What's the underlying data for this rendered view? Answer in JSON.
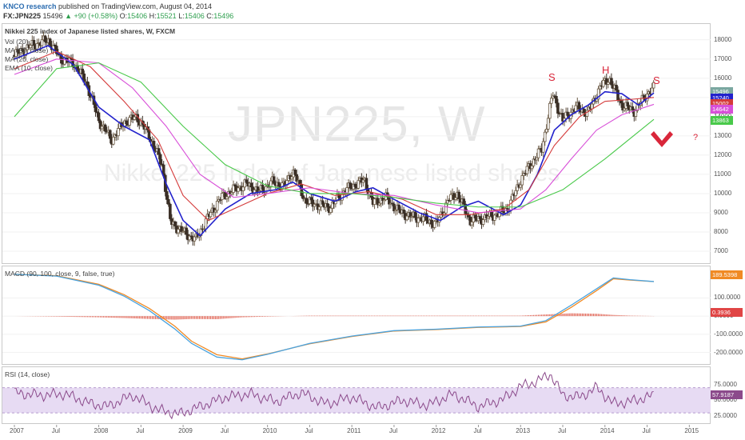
{
  "header": {
    "author": "KNCO research",
    "published": "published on TradingView.com, August 04, 2014",
    "symbol": "FX:JPN225",
    "last": "15496",
    "change": "+90 (+0.58%)",
    "open_label": "O:",
    "open": "15406",
    "high_label": "H:",
    "high": "15521",
    "low_label": "L:",
    "low": "15406",
    "close_label": "C:",
    "close": "15496"
  },
  "main_pane": {
    "legend_title": "Nikkei 225 index of Japanese listed shares, W, FXCM",
    "legend_lines": [
      "Vol (20)",
      "MA (50, close)",
      "MA (20, close)",
      "EMA (10, close)"
    ],
    "watermark_symbol": "JPN225, W",
    "watermark_name": "Nikkei 225 Index of Japanese listed shares",
    "annotations": {
      "left_shoulder": "S",
      "head": "H",
      "right_shoulder": "S",
      "question": "?"
    },
    "badges": [
      "15496",
      "15240",
      "15002",
      "14642",
      "13863"
    ]
  },
  "macd_pane": {
    "legend": "MACD (90, 100, close, 9, false, true)",
    "badges": [
      "189.5398",
      "0.3936"
    ]
  },
  "rsi_pane": {
    "legend": "RSI (14, close)",
    "badges": [
      "57.9187"
    ]
  },
  "colors": {
    "candle_up": "#6b5a45",
    "candle_down": "#3a2f26",
    "ema10": "#2222cc",
    "ma20": "#d43a3a",
    "ma50": "#d84fd8",
    "ma_long": "#49c94a",
    "macd": "#4aa3df",
    "signal": "#f08a24",
    "hist": "#e06050",
    "rsi": "#8b4a8b",
    "rsi_band": "#e7dbf3",
    "annotation": "#d9263a"
  },
  "chart_data": [
    {
      "type": "candlestick",
      "title": "Nikkei 225 index of Japanese listed shares, W, FXCM",
      "ylim": [
        6500,
        18700
      ],
      "y_ticks": [
        7000,
        8000,
        9000,
        10000,
        11000,
        12000,
        13000,
        14000,
        15000,
        16000,
        17000,
        18000
      ],
      "x_ticks": [
        "2007",
        "Jul",
        "2008",
        "Jul",
        "2009",
        "Jul",
        "2010",
        "Jul",
        "2011",
        "Jul",
        "2012",
        "Jul",
        "2013",
        "Jul",
        "2014",
        "Jul",
        "2015"
      ],
      "series": [
        {
          "name": "Price (weekly close)",
          "x": [
            2007.0,
            2007.2,
            2007.4,
            2007.55,
            2007.7,
            2007.85,
            2008.0,
            2008.15,
            2008.3,
            2008.45,
            2008.6,
            2008.75,
            2008.85,
            2009.0,
            2009.15,
            2009.3,
            2009.45,
            2009.6,
            2009.75,
            2009.9,
            2010.05,
            2010.2,
            2010.3,
            2010.45,
            2010.6,
            2010.75,
            2010.9,
            2011.05,
            2011.15,
            2011.25,
            2011.4,
            2011.55,
            2011.7,
            2011.85,
            2012.0,
            2012.15,
            2012.25,
            2012.4,
            2012.55,
            2012.7,
            2012.85,
            2013.0,
            2013.1,
            2013.25,
            2013.38,
            2013.5,
            2013.65,
            2013.8,
            2013.95,
            2014.05,
            2014.2,
            2014.35,
            2014.5,
            2014.58
          ],
          "y": [
            17200,
            17700,
            18000,
            17000,
            16800,
            15800,
            13800,
            12800,
            13700,
            14000,
            13000,
            11500,
            8500,
            8000,
            7600,
            8800,
            9800,
            10200,
            10500,
            10100,
            10600,
            10400,
            11200,
            9600,
            9400,
            9300,
            10100,
            10500,
            10700,
            9500,
            9800,
            9100,
            8800,
            8700,
            8400,
            9700,
            10000,
            8600,
            8700,
            8900,
            9200,
            10700,
            11400,
            12300,
            15200,
            13800,
            14500,
            14200,
            15600,
            16000,
            14600,
            14300,
            15200,
            15496
          ]
        },
        {
          "name": "EMA (10, close)",
          "x": [
            2007.0,
            2007.4,
            2007.7,
            2008.0,
            2008.3,
            2008.6,
            2008.8,
            2009.0,
            2009.2,
            2009.5,
            2009.8,
            2010.1,
            2010.3,
            2010.5,
            2010.8,
            2011.05,
            2011.25,
            2011.5,
            2011.8,
            2012.05,
            2012.3,
            2012.5,
            2012.8,
            2013.0,
            2013.2,
            2013.4,
            2013.6,
            2013.8,
            2014.0,
            2014.2,
            2014.4,
            2014.58
          ],
          "y": [
            17000,
            17700,
            16700,
            14500,
            13500,
            12800,
            10500,
            8600,
            7800,
            9200,
            10000,
            10200,
            10600,
            10000,
            9600,
            10100,
            10300,
            9700,
            9000,
            8600,
            9300,
            9600,
            8900,
            9400,
            11000,
            13300,
            14100,
            14600,
            15300,
            15200,
            14600,
            15240
          ]
        },
        {
          "name": "MA (20, close)",
          "x": [
            2007.0,
            2007.5,
            2007.9,
            2008.3,
            2008.7,
            2009.0,
            2009.3,
            2009.6,
            2010.0,
            2010.4,
            2010.8,
            2011.2,
            2011.6,
            2012.0,
            2012.4,
            2012.8,
            2013.1,
            2013.4,
            2013.7,
            2014.0,
            2014.3,
            2014.58
          ],
          "y": [
            16500,
            17400,
            16600,
            14800,
            12800,
            9900,
            8600,
            9200,
            10000,
            10500,
            9900,
            10100,
            9700,
            8900,
            8900,
            9200,
            10200,
            12500,
            14000,
            14800,
            14900,
            15002
          ]
        },
        {
          "name": "MA (50, close)",
          "x": [
            2007.0,
            2007.5,
            2008.0,
            2008.4,
            2008.8,
            2009.2,
            2009.6,
            2010.0,
            2010.5,
            2011.0,
            2011.5,
            2012.0,
            2012.5,
            2013.0,
            2013.3,
            2013.6,
            2013.9,
            2014.2,
            2014.58
          ],
          "y": [
            16200,
            17000,
            16800,
            15500,
            13500,
            11000,
            9800,
            10000,
            10300,
            10000,
            9900,
            9400,
            9000,
            9200,
            10200,
            11800,
            13300,
            14100,
            14642
          ]
        },
        {
          "name": "MA (long)",
          "x": [
            2007.0,
            2007.5,
            2008.0,
            2008.5,
            2009.0,
            2009.5,
            2010.0,
            2010.5,
            2011.0,
            2011.5,
            2012.0,
            2012.5,
            2013.0,
            2013.5,
            2014.0,
            2014.58
          ],
          "y": [
            14000,
            16500,
            16800,
            15800,
            13500,
            11500,
            10400,
            10000,
            10000,
            9800,
            9500,
            9300,
            9300,
            10200,
            11800,
            13863
          ]
        }
      ]
    },
    {
      "type": "line",
      "title": "MACD (90, 100, close, 9, false, true)",
      "ylim": [
        -250,
        260
      ],
      "y_ticks": [
        -200,
        -100,
        0,
        100
      ],
      "series": [
        {
          "name": "MACD",
          "x": [
            2007.0,
            2007.5,
            2008.0,
            2008.3,
            2008.6,
            2008.9,
            2009.1,
            2009.4,
            2009.7,
            2010.0,
            2010.5,
            2011.0,
            2011.5,
            2012.0,
            2012.5,
            2013.0,
            2013.3,
            2013.6,
            2013.9,
            2014.1,
            2014.3,
            2014.58
          ],
          "y": [
            230,
            220,
            170,
            110,
            30,
            -70,
            -150,
            -225,
            -240,
            -210,
            -150,
            -110,
            -80,
            -72,
            -60,
            -55,
            -25,
            60,
            150,
            210,
            200,
            190
          ]
        },
        {
          "name": "Signal",
          "x": [
            2007.0,
            2007.5,
            2008.0,
            2008.3,
            2008.6,
            2008.9,
            2009.1,
            2009.4,
            2009.7,
            2010.0,
            2010.5,
            2011.0,
            2011.5,
            2012.0,
            2012.5,
            2013.0,
            2013.3,
            2013.6,
            2013.9,
            2014.1,
            2014.3,
            2014.58
          ],
          "y": [
            230,
            222,
            175,
            118,
            42,
            -55,
            -138,
            -212,
            -235,
            -208,
            -152,
            -112,
            -82,
            -74,
            -62,
            -57,
            -32,
            48,
            140,
            205,
            198,
            189.54
          ]
        }
      ]
    },
    {
      "type": "line",
      "title": "RSI (14, close)",
      "ylim": [
        15,
        100
      ],
      "y_ticks": [
        25,
        50,
        75
      ],
      "band": [
        30,
        70
      ],
      "series": [
        {
          "name": "RSI (14, close)",
          "x": [
            2007.0,
            2007.3,
            2007.6,
            2007.9,
            2008.1,
            2008.4,
            2008.7,
            2008.95,
            2009.2,
            2009.5,
            2009.8,
            2010.1,
            2010.4,
            2010.7,
            2011.0,
            2011.3,
            2011.6,
            2011.9,
            2012.2,
            2012.5,
            2012.8,
            2013.0,
            2013.2,
            2013.35,
            2013.5,
            2013.7,
            2013.9,
            2014.1,
            2014.3,
            2014.58
          ],
          "y": [
            62,
            58,
            60,
            45,
            40,
            58,
            35,
            28,
            40,
            55,
            60,
            48,
            62,
            44,
            55,
            38,
            50,
            42,
            60,
            40,
            52,
            72,
            80,
            92,
            58,
            55,
            70,
            45,
            48,
            57.92
          ]
        }
      ]
    }
  ]
}
